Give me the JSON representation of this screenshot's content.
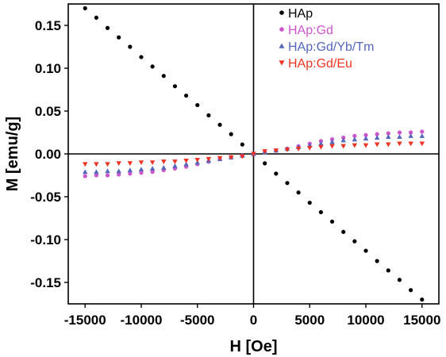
{
  "chart_data": {
    "type": "scatter",
    "title": "",
    "xlabel": "H [Oe]",
    "ylabel": "M [emu/g]",
    "xlim": [
      -16500,
      16500
    ],
    "ylim": [
      -0.175,
      0.175
    ],
    "x_ticks": [
      -15000,
      -10000,
      -5000,
      0,
      5000,
      10000,
      15000
    ],
    "x_tick_labels": [
      "-15000",
      "-10000",
      "-5000",
      "0",
      "5000",
      "10000",
      "15000"
    ],
    "y_ticks": [
      0.15,
      0.1,
      0.05,
      0.0,
      -0.05,
      -0.1,
      -0.15
    ],
    "y_tick_labels": [
      "0.15",
      "0.10",
      "0.05",
      "0.00",
      "-0.05",
      "-0.10",
      "-0.15"
    ],
    "legend_position": "top-right",
    "series": [
      {
        "name": "HAp",
        "color": "#000000",
        "marker": "circle",
        "x": [
          -15000,
          -14000,
          -13000,
          -12000,
          -11000,
          -10000,
          -9000,
          -8000,
          -7000,
          -6000,
          -5000,
          -4000,
          -3000,
          -2000,
          -1000,
          0,
          1000,
          2000,
          3000,
          4000,
          5000,
          6000,
          7000,
          8000,
          9000,
          10000,
          11000,
          12000,
          13000,
          14000,
          15000
        ],
        "y": [
          0.17,
          0.159,
          0.147,
          0.136,
          0.125,
          0.113,
          0.102,
          0.091,
          0.079,
          0.068,
          0.057,
          0.045,
          0.034,
          0.023,
          0.011,
          0.0,
          -0.011,
          -0.023,
          -0.034,
          -0.045,
          -0.057,
          -0.068,
          -0.079,
          -0.091,
          -0.102,
          -0.113,
          -0.125,
          -0.136,
          -0.147,
          -0.159,
          -0.17
        ]
      },
      {
        "name": "HAp:Gd",
        "color": "#cc55cc",
        "marker": "circle",
        "x": [
          -15000,
          -14000,
          -13000,
          -12000,
          -11000,
          -10000,
          -9000,
          -8000,
          -7000,
          -6000,
          -5000,
          -4000,
          -3000,
          -2000,
          -1000,
          0,
          1000,
          2000,
          3000,
          4000,
          5000,
          6000,
          7000,
          8000,
          9000,
          10000,
          11000,
          12000,
          13000,
          14000,
          15000
        ],
        "y": [
          -0.026,
          -0.025,
          -0.025,
          -0.024,
          -0.023,
          -0.022,
          -0.021,
          -0.019,
          -0.017,
          -0.015,
          -0.012,
          -0.009,
          -0.006,
          -0.004,
          -0.002,
          0.0,
          0.002,
          0.004,
          0.006,
          0.009,
          0.012,
          0.015,
          0.017,
          0.019,
          0.021,
          0.022,
          0.023,
          0.024,
          0.025,
          0.025,
          0.026
        ]
      },
      {
        "name": "HAp:Gd/Yb/Tm",
        "color": "#5566bb",
        "marker": "triangle-up",
        "x": [
          -15000,
          -14000,
          -13000,
          -12000,
          -11000,
          -10000,
          -9000,
          -8000,
          -7000,
          -6000,
          -5000,
          -4000,
          -3000,
          -2000,
          -1000,
          0,
          1000,
          2000,
          3000,
          4000,
          5000,
          6000,
          7000,
          8000,
          9000,
          10000,
          11000,
          12000,
          13000,
          14000,
          15000
        ],
        "y": [
          -0.021,
          -0.021,
          -0.02,
          -0.02,
          -0.019,
          -0.018,
          -0.017,
          -0.016,
          -0.014,
          -0.012,
          -0.01,
          -0.008,
          -0.006,
          -0.004,
          -0.002,
          0.0,
          0.002,
          0.004,
          0.006,
          0.008,
          0.01,
          0.012,
          0.014,
          0.016,
          0.017,
          0.018,
          0.019,
          0.02,
          0.02,
          0.021,
          0.021
        ]
      },
      {
        "name": "HAp:Gd/Eu",
        "color": "#ee3322",
        "marker": "triangle-down",
        "x": [
          -15000,
          -14000,
          -13000,
          -12000,
          -11000,
          -10000,
          -9000,
          -8000,
          -7000,
          -6000,
          -5000,
          -4000,
          -3000,
          -2000,
          -1000,
          0,
          1000,
          2000,
          3000,
          4000,
          5000,
          6000,
          7000,
          8000,
          9000,
          10000,
          11000,
          12000,
          13000,
          14000,
          15000
        ],
        "y": [
          -0.012,
          -0.012,
          -0.012,
          -0.011,
          -0.011,
          -0.01,
          -0.01,
          -0.009,
          -0.009,
          -0.008,
          -0.007,
          -0.006,
          -0.005,
          -0.004,
          -0.003,
          0.0,
          0.003,
          0.004,
          0.005,
          0.006,
          0.007,
          0.008,
          0.009,
          0.009,
          0.01,
          0.01,
          0.011,
          0.011,
          0.012,
          0.012,
          0.012
        ]
      }
    ]
  }
}
